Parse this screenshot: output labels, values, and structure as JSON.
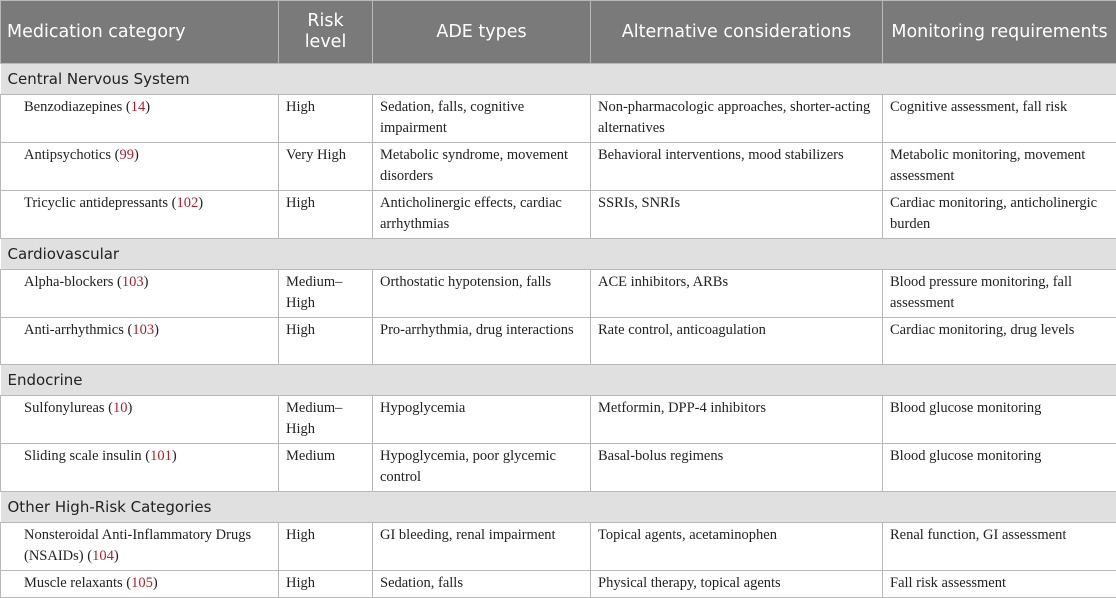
{
  "headers": [
    "Medication category",
    "Risk level",
    "ADE types",
    "Alternative considerations",
    "Monitoring requirements"
  ],
  "ref_color": "#b0202a",
  "sections": [
    {
      "title": "Central Nervous System",
      "rows": [
        {
          "name": "Benzodiazepines",
          "ref": "14",
          "risk": "High",
          "ade": "Sedation, falls, cognitive impairment",
          "alt": "Non-pharmacologic approaches, shorter-acting alternatives",
          "mon": "Cognitive assessment, fall risk"
        },
        {
          "name": "Antipsychotics",
          "ref": "99",
          "risk": "Very High",
          "ade": "Metabolic syndrome, movement disorders",
          "alt": "Behavioral interventions, mood stabilizers",
          "mon": "Metabolic monitoring, movement assessment"
        },
        {
          "name": "Tricyclic antidepressants",
          "ref": "102",
          "risk": "High",
          "ade": "Anticholinergic effects, cardiac arrhythmias",
          "alt": "SSRIs, SNRIs",
          "mon": "Cardiac monitoring, anticholinergic burden"
        }
      ]
    },
    {
      "title": "Cardiovascular",
      "rows": [
        {
          "name": "Alpha-blockers",
          "ref": "103",
          "risk": "Medium–High",
          "ade": "Orthostatic hypotension, falls",
          "alt": "ACE inhibitors, ARBs",
          "mon": "Blood pressure monitoring, fall assessment"
        },
        {
          "name": "Anti-arrhythmics",
          "ref": "103",
          "risk": "High",
          "ade": "Pro-arrhythmia, drug interactions",
          "alt": "Rate control, anticoagulation",
          "mon": "Cardiac monitoring, drug levels"
        }
      ]
    },
    {
      "title": "Endocrine",
      "rows": [
        {
          "name": "Sulfonylureas",
          "ref": "10",
          "risk": "Medium–High",
          "ade": "Hypoglycemia",
          "alt": "Metformin, DPP-4 inhibitors",
          "mon": "Blood glucose monitoring"
        },
        {
          "name": "Sliding scale insulin",
          "ref": "101",
          "risk": "Medium",
          "ade": "Hypoglycemia, poor glycemic control",
          "alt": "Basal-bolus regimens",
          "mon": "Blood glucose monitoring"
        }
      ]
    },
    {
      "title": "Other High-Risk Categories",
      "rows": [
        {
          "name": "Nonsteroidal Anti-Inflammatory Drugs (NSAIDs)",
          "ref": "104",
          "risk": "High",
          "ade": "GI bleeding, renal impairment",
          "alt": "Topical agents, acetaminophen",
          "mon": "Renal function, GI assessment"
        },
        {
          "name": "Muscle relaxants",
          "ref": "105",
          "risk": "High",
          "ade": "Sedation, falls",
          "alt": "Physical therapy, topical agents",
          "mon": "Fall risk assessment"
        }
      ]
    }
  ]
}
